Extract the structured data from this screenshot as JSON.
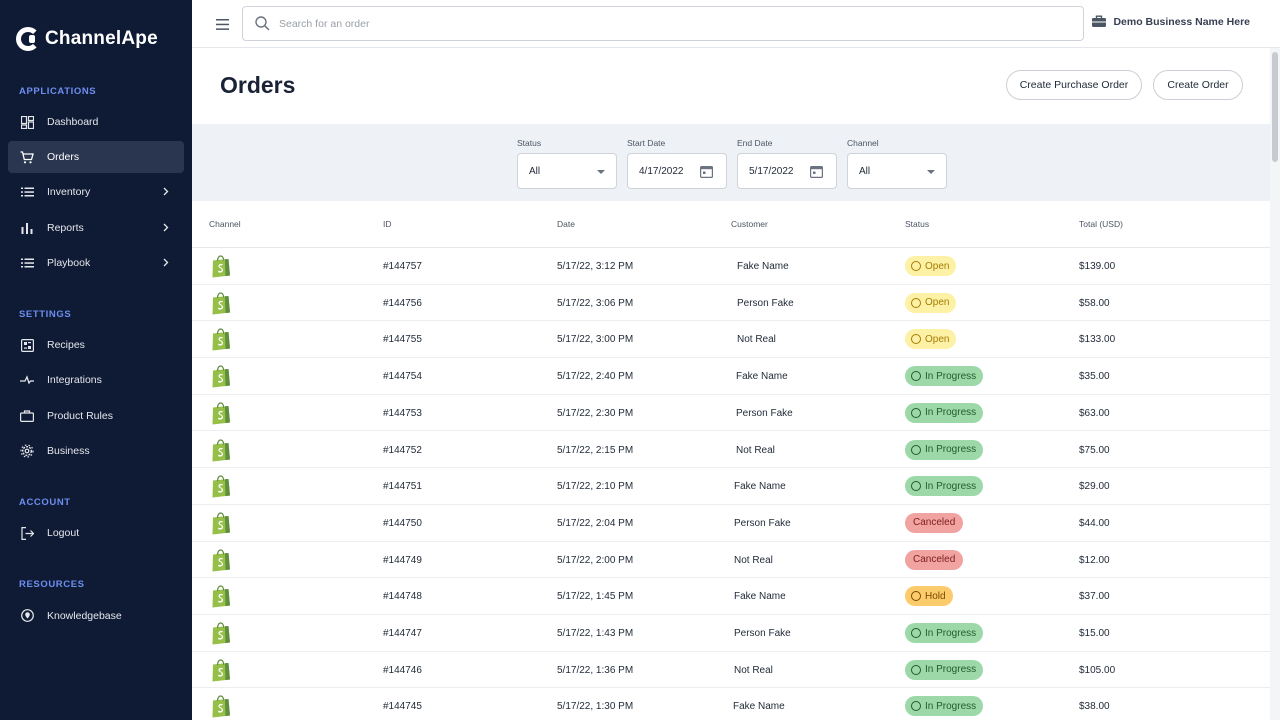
{
  "brand": {
    "name": "ChannelApe"
  },
  "sidebar": {
    "sections": [
      {
        "title": "APPLICATIONS",
        "items": [
          {
            "label": "Dashboard",
            "icon": "dashboard-icon"
          },
          {
            "label": "Orders",
            "icon": "cart-icon",
            "active": true
          },
          {
            "label": "Inventory",
            "icon": "list-icon",
            "chevron": true
          },
          {
            "label": "Reports",
            "icon": "bar-chart-icon",
            "chevron": true
          },
          {
            "label": "Playbook",
            "icon": "list-icon",
            "chevron": true
          }
        ]
      },
      {
        "title": "SETTINGS",
        "items": [
          {
            "label": "Recipes",
            "icon": "recipes-icon"
          },
          {
            "label": "Integrations",
            "icon": "integrations-icon"
          },
          {
            "label": "Product Rules",
            "icon": "box-icon"
          },
          {
            "label": "Business",
            "icon": "gear-icon"
          }
        ]
      },
      {
        "title": "ACCOUNT",
        "items": [
          {
            "label": "Logout",
            "icon": "logout-icon"
          }
        ]
      },
      {
        "title": "RESOURCES",
        "items": [
          {
            "label": "Knowledgebase",
            "icon": "location-pin-icon"
          }
        ]
      }
    ]
  },
  "topbar": {
    "search_placeholder": "Search for an order",
    "business_name": "Demo Business Name Here"
  },
  "page": {
    "title": "Orders",
    "create_po_label": "Create Purchase Order",
    "create_order_label": "Create Order"
  },
  "filters": {
    "status": {
      "label": "Status",
      "value": "All"
    },
    "start_date": {
      "label": "Start Date",
      "value": "4/17/2022"
    },
    "end_date": {
      "label": "End Date",
      "value": "5/17/2022"
    },
    "channel": {
      "label": "Channel",
      "value": "All"
    }
  },
  "table": {
    "headers": [
      "Channel",
      "ID",
      "Date",
      "Customer",
      "Status",
      "Total (USD)"
    ],
    "status_colors": {
      "open": "#fdf1a6",
      "progress": "#9dd8a9",
      "canceled": "#f0a3a0",
      "hold": "#fbcb6c"
    },
    "rows": [
      {
        "id": "#144757",
        "date": "5/17/22, 3:12 PM",
        "customer": "Fake Name",
        "status": "Open",
        "status_kind": "open",
        "total": "$139.00"
      },
      {
        "id": "#144756",
        "date": "5/17/22, 3:06 PM",
        "customer": "Person Fake",
        "status": "Open",
        "status_kind": "open",
        "total": "$58.00"
      },
      {
        "id": "#144755",
        "date": "5/17/22, 3:00 PM",
        "customer": "Not Real",
        "status": "Open",
        "status_kind": "open",
        "total": "$133.00"
      },
      {
        "id": "#144754",
        "date": "5/17/22, 2:40 PM",
        "customer": "Fake Name",
        "status": "In Progress",
        "status_kind": "progress",
        "total": "$35.00"
      },
      {
        "id": "#144753",
        "date": "5/17/22, 2:30 PM",
        "customer": "Person Fake",
        "status": "In Progress",
        "status_kind": "progress",
        "total": "$63.00"
      },
      {
        "id": "#144752",
        "date": "5/17/22, 2:15 PM",
        "customer": "Not Real",
        "status": "In Progress",
        "status_kind": "progress",
        "total": "$75.00"
      },
      {
        "id": "#144751",
        "date": "5/17/22, 2:10 PM",
        "customer": "Fake Name",
        "status": "In Progress",
        "status_kind": "progress",
        "total": "$29.00"
      },
      {
        "id": "#144750",
        "date": "5/17/22, 2:04 PM",
        "customer": "Person Fake",
        "status": "Canceled",
        "status_kind": "canceled",
        "total": "$44.00"
      },
      {
        "id": "#144749",
        "date": "5/17/22, 2:00 PM",
        "customer": "Not Real",
        "status": "Canceled",
        "status_kind": "canceled",
        "total": "$12.00"
      },
      {
        "id": "#144748",
        "date": "5/17/22, 1:45 PM",
        "customer": "Fake Name",
        "status": "Hold",
        "status_kind": "hold",
        "total": "$37.00"
      },
      {
        "id": "#144747",
        "date": "5/17/22, 1:43 PM",
        "customer": "Person Fake",
        "status": "In Progress",
        "status_kind": "progress",
        "total": "$15.00"
      },
      {
        "id": "#144746",
        "date": "5/17/22, 1:36 PM",
        "customer": "Not Real",
        "status": "In Progress",
        "status_kind": "progress",
        "total": "$105.00"
      },
      {
        "id": "#144745",
        "date": "5/17/22, 1:30 PM",
        "customer": "Fake Name",
        "status": "In Progress",
        "status_kind": "progress",
        "total": "$38.00"
      }
    ]
  }
}
